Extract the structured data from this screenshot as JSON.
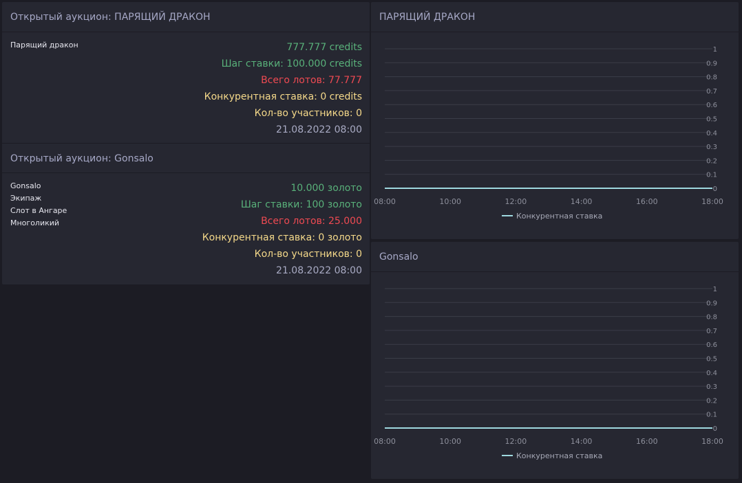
{
  "auctions": [
    {
      "header": "Открытый аукцион: ПАРЯЩИЙ ДРАКОН",
      "items": [
        "Парящий дракон"
      ],
      "price": "777.777 credits",
      "bid_step": "Шаг ставки: 100.000 credits",
      "total_lots": "Всего лотов: 77.777",
      "competitive_bid": "Конкурентная ставка: 0 credits",
      "participants": "Кол-во участников: 0",
      "date": "21.08.2022 08:00"
    },
    {
      "header": "Открытый аукцион: Gonsalo",
      "items": [
        "Gonsalo",
        "Экипаж",
        "Слот в Ангаре",
        "Многоликий"
      ],
      "price": "10.000 золото",
      "bid_step": "Шаг ставки: 100 золото",
      "total_lots": "Всего лотов: 25.000",
      "competitive_bid": "Конкурентная ставка: 0 золото",
      "participants": "Кол-во участников: 0",
      "date": "21.08.2022 08:00"
    }
  ],
  "colors": {
    "green": "#59b17a",
    "red": "#ef4a52",
    "yellow": "#f5d98a",
    "series": "#9fd9e0"
  },
  "chart_data": [
    {
      "type": "line",
      "title": "ПАРЯЩИЙ ДРАКОН",
      "x": [
        "08:00",
        "10:00",
        "12:00",
        "14:00",
        "16:00",
        "18:00"
      ],
      "y_ticks": [
        "1",
        "0.9",
        "0.8",
        "0.7",
        "0.6",
        "0.5",
        "0.4",
        "0.3",
        "0.2",
        "0.1",
        "0"
      ],
      "ylim": [
        0,
        1
      ],
      "grid": true,
      "legend": "bottom-center",
      "series": [
        {
          "name": "Конкурентная ставка",
          "values": [
            0,
            0,
            0,
            0,
            0,
            0
          ]
        }
      ]
    },
    {
      "type": "line",
      "title": "Gonsalo",
      "x": [
        "08:00",
        "10:00",
        "12:00",
        "14:00",
        "16:00",
        "18:00"
      ],
      "y_ticks": [
        "1",
        "0.9",
        "0.8",
        "0.7",
        "0.6",
        "0.5",
        "0.4",
        "0.3",
        "0.2",
        "0.1",
        "0"
      ],
      "ylim": [
        0,
        1
      ],
      "grid": true,
      "legend": "bottom-center",
      "series": [
        {
          "name": "Конкурентная ставка",
          "values": [
            0,
            0,
            0,
            0,
            0,
            0
          ]
        }
      ]
    }
  ]
}
